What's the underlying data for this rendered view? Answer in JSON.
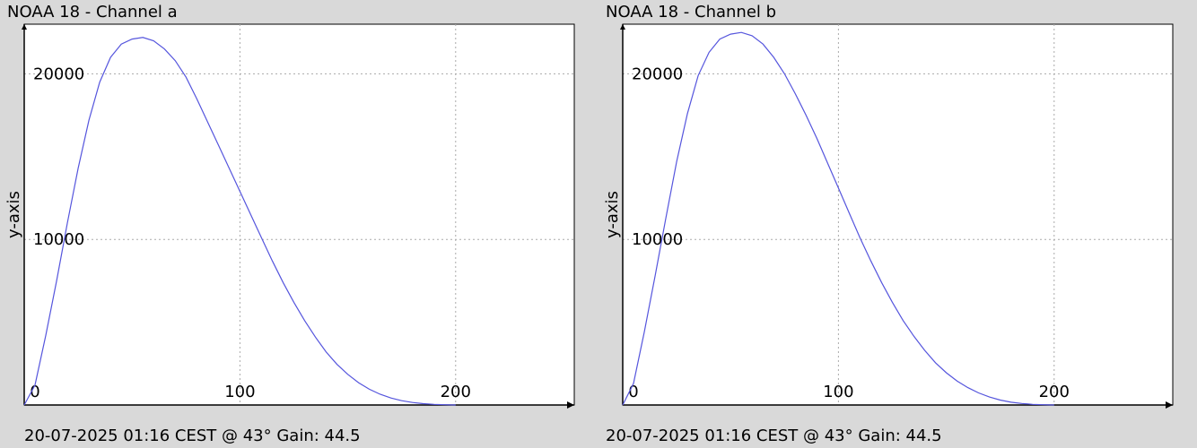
{
  "colors": {
    "background": "#d9d9d9",
    "plot_background": "#ffffff",
    "line": "#5555dd",
    "grid": "#aaaaaa",
    "axis": "#000000"
  },
  "chart_data": [
    {
      "type": "line",
      "title": "NOAA 18 - Channel a",
      "footer": "20-07-2025 01:16 CEST @ 43° Gain: 44.5",
      "ylabel": "y-axis",
      "xlabel": "",
      "xlim": [
        0,
        255
      ],
      "ylim": [
        0,
        23000
      ],
      "xticks": [
        0,
        100,
        200
      ],
      "yticks": [
        10000,
        20000
      ],
      "xtick_labels": [
        "0",
        "100",
        "200"
      ],
      "ytick_labels": [
        "10000",
        "20000"
      ],
      "grid": true,
      "series": [
        {
          "x": [
            0,
            5,
            10,
            15,
            20,
            25,
            30,
            35,
            40,
            45,
            50,
            55,
            60,
            65,
            70,
            75,
            80,
            85,
            90,
            95,
            100,
            105,
            110,
            115,
            120,
            125,
            130,
            135,
            140,
            145,
            150,
            155,
            160,
            165,
            170,
            175,
            180,
            185,
            190,
            195,
            200
          ],
          "y": [
            0,
            1200,
            4200,
            7500,
            11000,
            14300,
            17200,
            19500,
            21000,
            21800,
            22100,
            22200,
            22000,
            21500,
            20800,
            19800,
            18500,
            17100,
            15700,
            14300,
            12900,
            11500,
            10100,
            8700,
            7400,
            6200,
            5100,
            4100,
            3200,
            2450,
            1850,
            1350,
            950,
            650,
            420,
            260,
            150,
            80,
            40,
            15,
            0
          ]
        }
      ]
    },
    {
      "type": "line",
      "title": "NOAA 18 - Channel b",
      "footer": "20-07-2025 01:16 CEST @ 43° Gain: 44.5",
      "ylabel": "y-axis",
      "xlabel": "",
      "xlim": [
        0,
        255
      ],
      "ylim": [
        0,
        23000
      ],
      "xticks": [
        0,
        100,
        200
      ],
      "yticks": [
        10000,
        20000
      ],
      "xtick_labels": [
        "0",
        "100",
        "200"
      ],
      "ytick_labels": [
        "10000",
        "20000"
      ],
      "grid": true,
      "series": [
        {
          "x": [
            0,
            5,
            10,
            15,
            20,
            25,
            30,
            35,
            40,
            45,
            50,
            55,
            60,
            65,
            70,
            75,
            80,
            85,
            90,
            95,
            100,
            105,
            110,
            115,
            120,
            125,
            130,
            135,
            140,
            145,
            150,
            155,
            160,
            165,
            170,
            175,
            180,
            185,
            190,
            195,
            200
          ],
          "y": [
            0,
            1300,
            4400,
            7800,
            11300,
            14700,
            17600,
            19900,
            21300,
            22100,
            22400,
            22500,
            22300,
            21800,
            21000,
            20000,
            18800,
            17500,
            16100,
            14600,
            13100,
            11600,
            10100,
            8700,
            7400,
            6200,
            5100,
            4150,
            3300,
            2550,
            1950,
            1450,
            1050,
            730,
            480,
            300,
            170,
            90,
            40,
            15,
            0
          ]
        }
      ]
    }
  ]
}
